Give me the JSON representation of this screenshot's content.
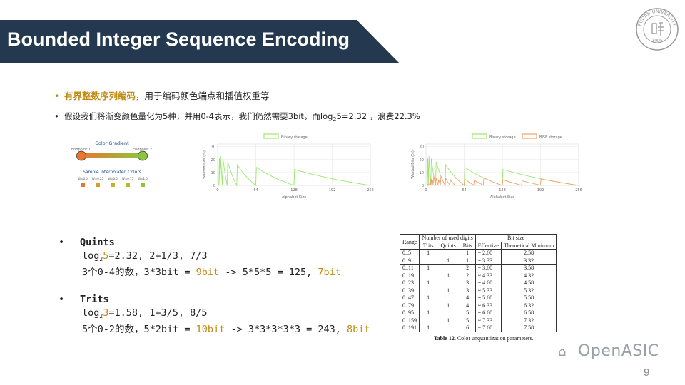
{
  "title": "Bounded Integer Sequence Encoding",
  "logo": {
    "text_top": "FUDAN UNIVERSITY",
    "text_bottom": "1905",
    "icon": "university-seal-icon"
  },
  "bullets": [
    {
      "highlight": "有界整数序列编码",
      "rest": "，用于编码颜色端点和插值权重等"
    },
    {
      "pre": "假设我们将渐变颜色量化为5种，并用0-4表示，我们仍然需要3bit，而log",
      "sub": "2",
      "post": "5=2.32 ，浪费22.3%"
    }
  ],
  "gradient": {
    "title": "Color Gradient",
    "endpoint1": "Endpoint 1",
    "endpoint2": "Endpoint 2",
    "samples_title": "Sample Interpolated Colors",
    "weights": [
      "W=0.0",
      "W=0.25",
      "W=0.5",
      "W=0.75",
      "W=1.0"
    ],
    "sample_colors": [
      "#e8762d",
      "#d79a2c",
      "#c4b12c",
      "#a8c22e",
      "#8cc63f"
    ]
  },
  "chart_data": [
    {
      "type": "line",
      "legend": [
        "Binary storage"
      ],
      "ylabel": "Wasted Bits (%)",
      "xlabel": "Alphabet Size",
      "xticks": [
        "0",
        "64",
        "128",
        "192",
        "256"
      ],
      "yticks": [
        "0",
        "10",
        "20",
        "30"
      ],
      "xlim": [
        0,
        256
      ],
      "ylim": [
        0,
        32
      ],
      "series": [
        {
          "name": "Binary storage",
          "color": "#9be86c"
        }
      ]
    },
    {
      "type": "line",
      "legend": [
        "Binary storage",
        "BISE storage"
      ],
      "ylabel": "Wasted Bits (%)",
      "xlabel": "Alphabet Size",
      "xticks": [
        "0",
        "64",
        "128",
        "192",
        "256"
      ],
      "yticks": [
        "0",
        "10",
        "20",
        "30"
      ],
      "xlim": [
        0,
        256
      ],
      "ylim": [
        0,
        32
      ],
      "series": [
        {
          "name": "Binary storage",
          "color": "#9be86c"
        },
        {
          "name": "BISE storage",
          "color": "#f2a06a"
        }
      ]
    }
  ],
  "quints": {
    "heading": "Quints",
    "l1_pre": "log",
    "l1_sub": "2",
    "l1_num": "5",
    "l1_post": "=2.32, 2+1/3, 7/3",
    "l2_pre": "3个0-4的数，3*3bit = ",
    "l2_a": "9bit",
    "l2_mid": " -> 5*5*5 = 125, ",
    "l2_b": "7bit"
  },
  "trits": {
    "heading": "Trits",
    "l1_pre": "log",
    "l1_sub": "2",
    "l1_num": "3",
    "l1_post": "=1.58, 1+3/5, 8/5",
    "l2_pre": "5个0-2的数，5*2bit = ",
    "l2_a": "10bit",
    "l2_mid": " -> 3*3*3*3*3 = 243, ",
    "l2_b": "8bit"
  },
  "table": {
    "h_range": "Range",
    "h_digits": "Number of used digits",
    "h_bitsize": "Bit size",
    "h_trits": "Trits",
    "h_quints": "Quints",
    "h_bits": "Bits",
    "h_effective": "Effective",
    "h_theoretical": "Theoretical Minimum",
    "rows": [
      [
        "0..5",
        "1",
        "",
        "1",
        "~ 2.60",
        "2.58"
      ],
      [
        "0..9",
        "",
        "1",
        "1",
        "~ 3.33",
        "3.32"
      ],
      [
        "0..11",
        "1",
        "",
        "2",
        "~ 3.60",
        "3.58"
      ],
      [
        "0..19",
        "",
        "1",
        "2",
        "~ 4.33",
        "4.32"
      ],
      [
        "0..23",
        "1",
        "",
        "3",
        "~ 4.60",
        "4.58"
      ],
      [
        "0..39",
        "",
        "1",
        "3",
        "~ 5.33",
        "5.32"
      ],
      [
        "0..47",
        "1",
        "",
        "4",
        "~ 5.60",
        "5.58"
      ],
      [
        "0..79",
        "",
        "1",
        "4",
        "~ 6.33",
        "6.32"
      ],
      [
        "0..95",
        "1",
        "",
        "5",
        "~ 6.60",
        "6.58"
      ],
      [
        "0..159",
        "",
        "1",
        "5",
        "~ 7.33",
        "7.32"
      ],
      [
        "0..191",
        "1",
        "",
        "6",
        "~ 7.60",
        "7.58"
      ]
    ],
    "caption_bold": "Table 12.",
    "caption": " Color unquantization parameters."
  },
  "watermark": "OpenASIC",
  "slide_number": "9"
}
